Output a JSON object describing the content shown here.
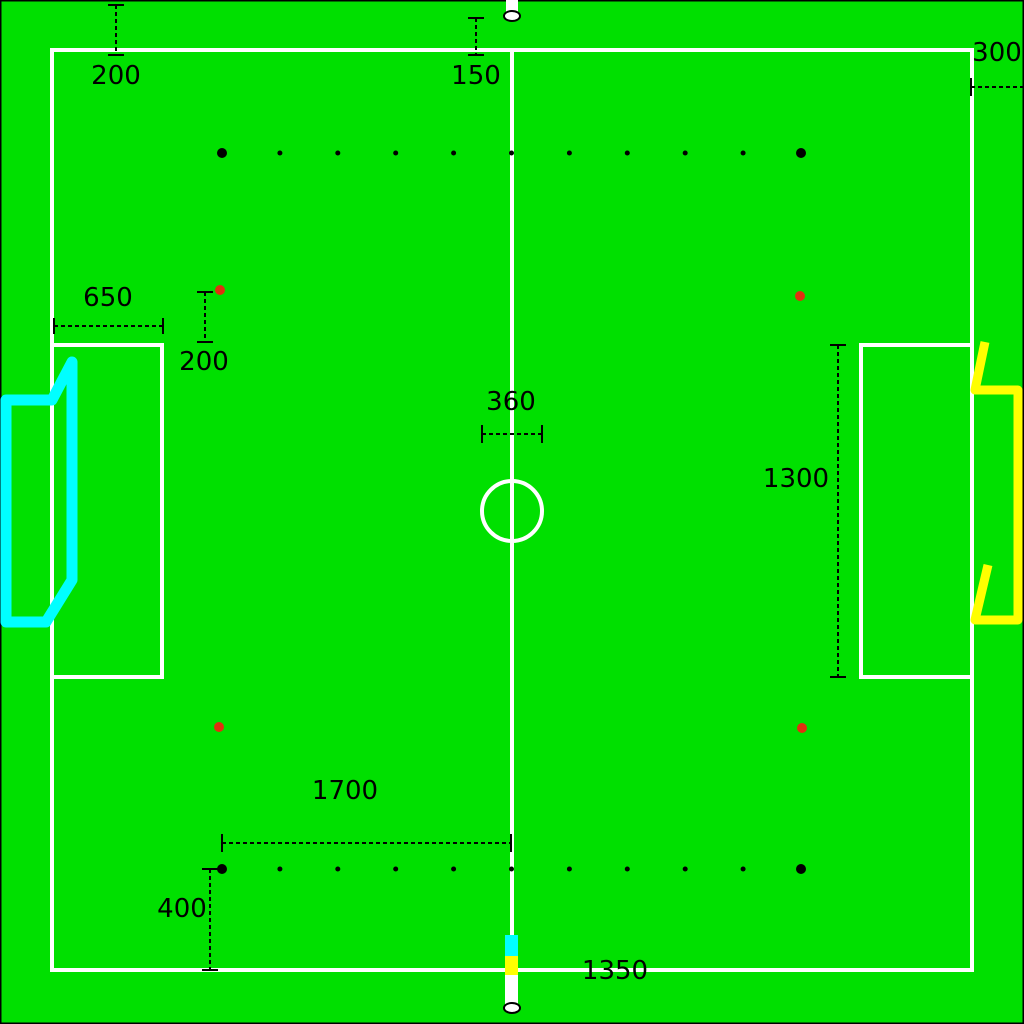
{
  "colors": {
    "background": "#00e000",
    "lines": "#ffffff",
    "markers": "#000000",
    "dimension": "#000000",
    "penalty_marks": "#e03010",
    "left_goal": "#00ffff",
    "right_goal": "#ffff00"
  },
  "dimensions": {
    "top_margin": "200",
    "center_post_offset": "150",
    "right_margin": "300",
    "goal_area_depth": "650",
    "penalty_offset": "200",
    "center_circle": "360",
    "goal_area_width": "1300",
    "marker_span": "1700",
    "marker_offset": "400",
    "bottom_offset": "1350"
  },
  "markers": {
    "rows": 2,
    "dots_per_row": 11
  }
}
